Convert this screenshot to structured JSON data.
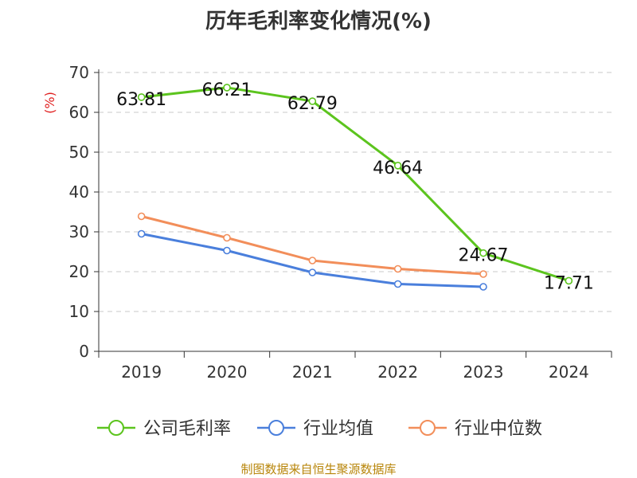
{
  "chart_data": {
    "type": "line",
    "title": "历年毛利率变化情况(%)",
    "ylabel": "(%)",
    "xlabel": "",
    "categories": [
      "2019",
      "2020",
      "2021",
      "2022",
      "2023",
      "2024"
    ],
    "ylim": [
      0,
      70
    ],
    "yticks": [
      0,
      10,
      20,
      30,
      40,
      50,
      60,
      70
    ],
    "grid": true,
    "legend_position": "bottom",
    "series": [
      {
        "name": "公司毛利率",
        "color": "#5cc41e",
        "values": [
          63.81,
          66.21,
          62.79,
          46.64,
          24.67,
          17.71
        ],
        "labels": [
          "63.81",
          "66.21",
          "62.79",
          "46.64",
          "24.67",
          "17.71"
        ]
      },
      {
        "name": "行业均值",
        "color": "#4a7fdc",
        "values": [
          29.5,
          25.3,
          19.8,
          16.9,
          16.2,
          null
        ]
      },
      {
        "name": "行业中位数",
        "color": "#f28e5a",
        "values": [
          33.9,
          28.5,
          22.8,
          20.7,
          19.4,
          null
        ]
      }
    ]
  },
  "footer": {
    "source": "制图数据来自恒生聚源数据库"
  }
}
